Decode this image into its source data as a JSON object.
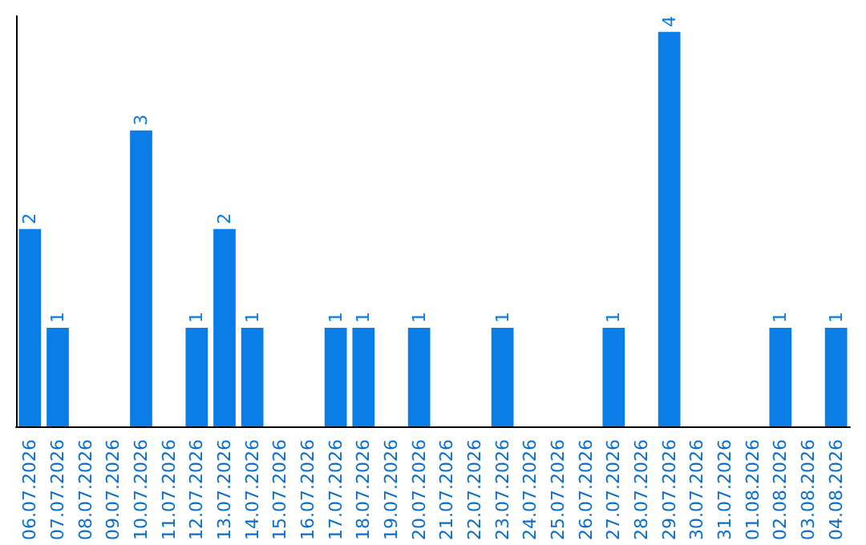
{
  "chart_data": {
    "type": "bar",
    "categories": [
      "06.07.2026",
      "07.07.2026",
      "08.07.2026",
      "09.07.2026",
      "10.07.2026",
      "11.07.2026",
      "12.07.2026",
      "13.07.2026",
      "14.07.2026",
      "15.07.2026",
      "16.07.2026",
      "17.07.2026",
      "18.07.2026",
      "19.07.2026",
      "20.07.2026",
      "21.07.2026",
      "22.07.2026",
      "23.07.2026",
      "24.07.2026",
      "25.07.2026",
      "26.07.2026",
      "27.07.2026",
      "28.07.2026",
      "29.07.2026",
      "30.07.2026",
      "31.07.2026",
      "01.08.2026",
      "02.08.2026",
      "03.08.2026",
      "04.08.2026"
    ],
    "values": [
      2,
      1,
      0,
      0,
      3,
      0,
      1,
      2,
      1,
      0,
      0,
      1,
      1,
      0,
      1,
      0,
      0,
      1,
      0,
      0,
      0,
      1,
      0,
      4,
      0,
      0,
      0,
      1,
      0,
      1
    ],
    "value_labels": [
      "2",
      "1",
      null,
      null,
      "3",
      null,
      "1",
      "2",
      "1",
      null,
      null,
      "1",
      "1",
      null,
      "1",
      null,
      null,
      "1",
      null,
      null,
      null,
      "1",
      null,
      "4",
      null,
      null,
      null,
      "1",
      null,
      "1"
    ],
    "color": "#0a7ee6"
  }
}
